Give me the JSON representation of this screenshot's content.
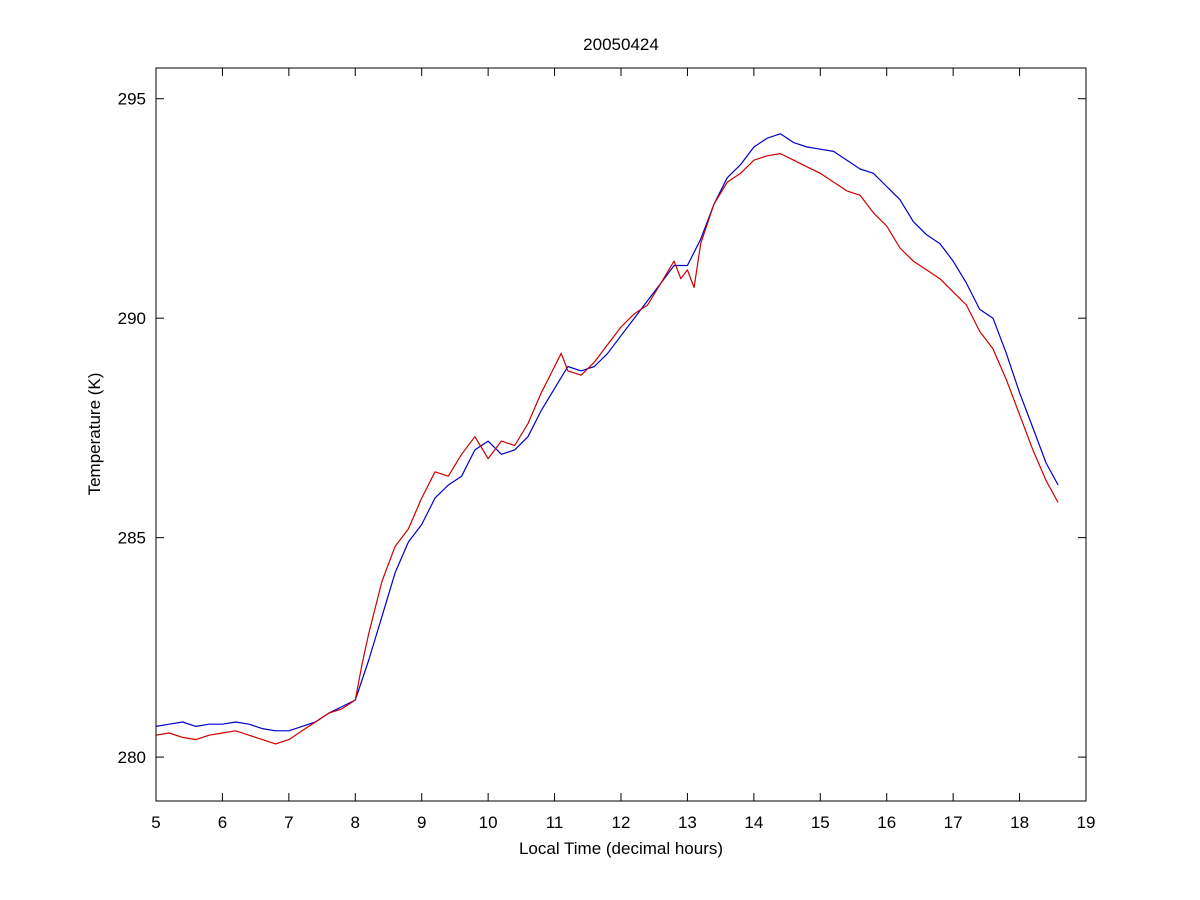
{
  "chart_data": {
    "type": "line",
    "title": "20050424",
    "xlabel": "Local Time (decimal hours)",
    "ylabel": "Temperature (K)",
    "xlim": [
      5,
      19
    ],
    "ylim": [
      279.0,
      295.7
    ],
    "xticks": [
      "5",
      "6",
      "7",
      "8",
      "9",
      "10",
      "11",
      "12",
      "13",
      "14",
      "15",
      "16",
      "17",
      "18",
      "19"
    ],
    "yticks": [
      "280",
      "285",
      "290",
      "295"
    ],
    "grid": false,
    "legend": "none",
    "series": [
      {
        "color": "#0000cc",
        "x": [
          5.0,
          5.2,
          5.4,
          5.6,
          5.8,
          6.0,
          6.2,
          6.4,
          6.6,
          6.8,
          7.0,
          7.2,
          7.4,
          7.6,
          7.8,
          8.0,
          8.2,
          8.4,
          8.6,
          8.8,
          9.0,
          9.2,
          9.4,
          9.6,
          9.8,
          10.0,
          10.2,
          10.4,
          10.6,
          10.8,
          11.0,
          11.2,
          11.4,
          11.6,
          11.8,
          12.0,
          12.2,
          12.4,
          12.6,
          12.8,
          13.0,
          13.2,
          13.4,
          13.6,
          13.8,
          14.0,
          14.2,
          14.4,
          14.6,
          14.8,
          15.0,
          15.2,
          15.4,
          15.6,
          15.8,
          16.0,
          16.2,
          16.4,
          16.6,
          16.8,
          17.0,
          17.2,
          17.4,
          17.6,
          17.8,
          18.0,
          18.2,
          18.4,
          18.58
        ],
        "y": [
          280.7,
          280.75,
          280.8,
          280.7,
          280.75,
          280.75,
          280.8,
          280.75,
          280.65,
          280.6,
          280.6,
          280.7,
          280.8,
          281.0,
          281.15,
          281.3,
          282.2,
          283.2,
          284.2,
          284.9,
          285.3,
          285.9,
          286.2,
          286.4,
          287.0,
          287.2,
          286.9,
          287.0,
          287.3,
          287.9,
          288.4,
          288.9,
          288.8,
          288.9,
          289.2,
          289.6,
          290.0,
          290.4,
          290.8,
          291.2,
          291.2,
          291.8,
          292.6,
          293.2,
          293.5,
          293.9,
          294.1,
          294.2,
          294.0,
          293.9,
          293.85,
          293.8,
          293.6,
          293.4,
          293.3,
          293.0,
          292.7,
          292.2,
          291.9,
          291.7,
          291.3,
          290.8,
          290.2,
          290.0,
          289.2,
          288.3,
          287.5,
          286.7,
          286.2
        ]
      },
      {
        "color": "#cc0000",
        "x": [
          5.0,
          5.2,
          5.4,
          5.6,
          5.8,
          6.0,
          6.2,
          6.4,
          6.6,
          6.8,
          7.0,
          7.2,
          7.4,
          7.6,
          7.8,
          8.0,
          8.1,
          8.2,
          8.4,
          8.6,
          8.8,
          9.0,
          9.2,
          9.4,
          9.6,
          9.8,
          10.0,
          10.2,
          10.4,
          10.6,
          10.8,
          11.0,
          11.1,
          11.2,
          11.4,
          11.6,
          11.8,
          12.0,
          12.2,
          12.4,
          12.6,
          12.8,
          12.9,
          13.0,
          13.1,
          13.2,
          13.4,
          13.6,
          13.8,
          14.0,
          14.2,
          14.4,
          14.6,
          14.8,
          15.0,
          15.2,
          15.4,
          15.6,
          15.8,
          16.0,
          16.2,
          16.4,
          16.6,
          16.8,
          17.0,
          17.2,
          17.4,
          17.6,
          17.8,
          18.0,
          18.2,
          18.4,
          18.58
        ],
        "y": [
          280.5,
          280.55,
          280.45,
          280.4,
          280.5,
          280.55,
          280.6,
          280.5,
          280.4,
          280.3,
          280.4,
          280.6,
          280.8,
          281.0,
          281.1,
          281.3,
          282.1,
          282.8,
          284.0,
          284.8,
          285.2,
          285.9,
          286.5,
          286.4,
          286.9,
          287.3,
          286.8,
          287.2,
          287.1,
          287.6,
          288.3,
          288.9,
          289.2,
          288.8,
          288.7,
          289.0,
          289.4,
          289.8,
          290.1,
          290.3,
          290.8,
          291.3,
          290.9,
          291.1,
          290.7,
          291.7,
          292.6,
          293.1,
          293.3,
          293.6,
          293.7,
          293.75,
          293.6,
          293.45,
          293.3,
          293.1,
          292.9,
          292.8,
          292.4,
          292.1,
          291.6,
          291.3,
          291.1,
          290.9,
          290.6,
          290.3,
          289.7,
          289.3,
          288.6,
          287.8,
          287.0,
          286.3,
          285.8
        ]
      }
    ]
  }
}
